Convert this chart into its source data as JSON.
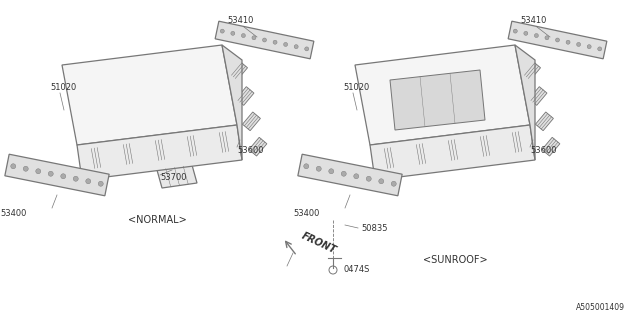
{
  "bg_color": "#ffffff",
  "line_color": "#777777",
  "text_color": "#333333",
  "diagram_id": "A505001409",
  "normal_label": "<NORMAL>",
  "sunroof_label": "<SUNROOF>",
  "front_label": "FRONT",
  "lw_main": 0.9,
  "lw_detail": 0.5,
  "fs_label": 7.0,
  "fs_small": 6.0
}
